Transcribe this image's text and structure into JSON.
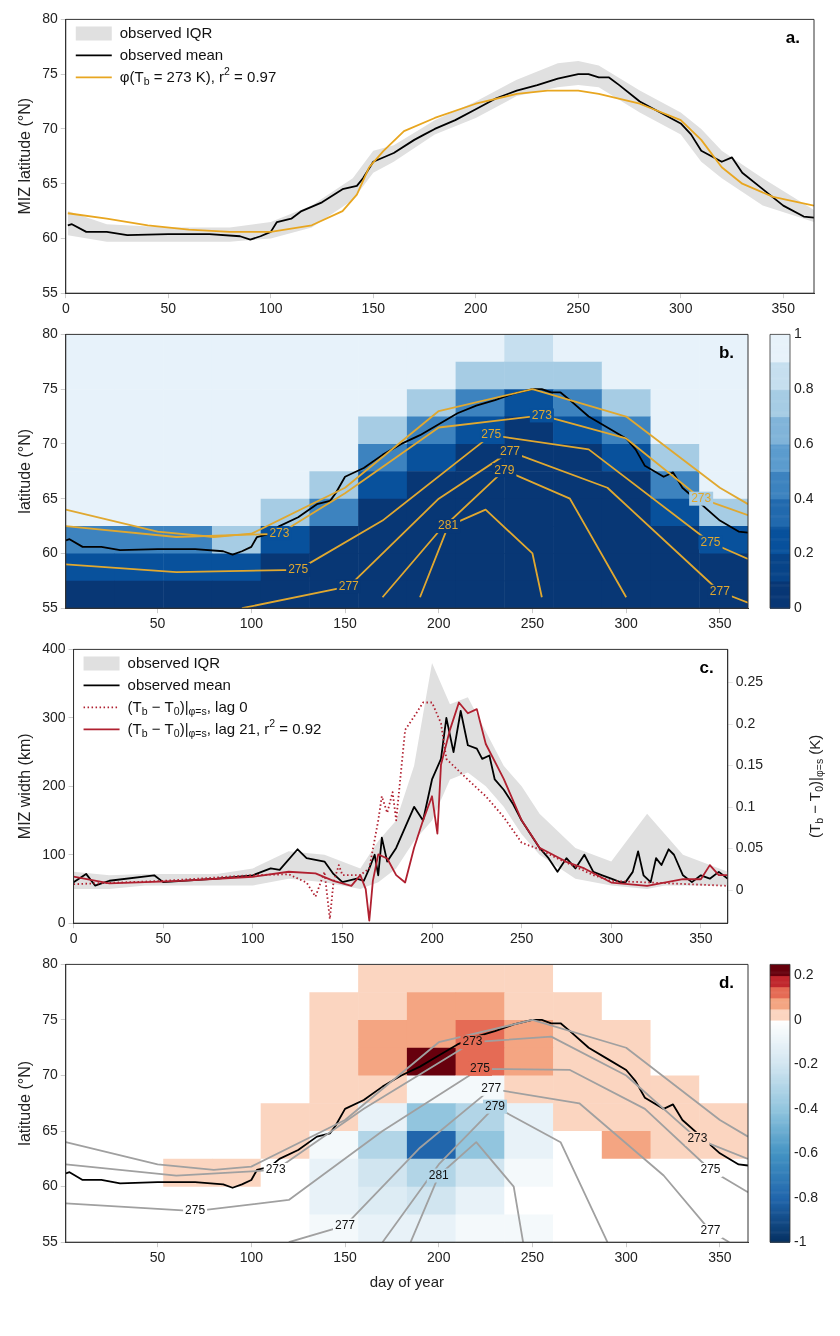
{
  "chart_data": [
    {
      "type": "line",
      "ylabel": "MIZ latitude (°N)",
      "xlim": [
        0,
        365
      ],
      "xticks": [
        0,
        50,
        100,
        150,
        200,
        250,
        300,
        350
      ],
      "ylim": [
        55,
        80
      ],
      "yticks": [
        55,
        60,
        65,
        70,
        75,
        80
      ],
      "legend": "top left",
      "annotations": [
        "a."
      ],
      "series": [
        {
          "name": "observed IQR",
          "type": "line",
          "color": "#e0e0e0",
          "x": [
            1,
            20,
            50,
            80,
            100,
            120,
            140,
            150,
            160,
            180,
            200,
            220,
            240,
            250,
            260,
            280,
            300,
            310,
            320,
            340,
            365
          ],
          "values": [
            null,
            null,
            null,
            null,
            null,
            null,
            null,
            null,
            null,
            null,
            null,
            null,
            null,
            null,
            null,
            null,
            null,
            null,
            null,
            null,
            null
          ],
          "lower": [
            60.3,
            59.7,
            59.7,
            59.7,
            60,
            61,
            63.5,
            66,
            67,
            69.5,
            71,
            73,
            73.8,
            74,
            73.8,
            71.5,
            69.5,
            67,
            65.5,
            63,
            61.5
          ],
          "upper": [
            62.5,
            61.3,
            61,
            61,
            61.5,
            63,
            65.5,
            68,
            68.5,
            70.8,
            72.5,
            74.5,
            76,
            76.2,
            75.8,
            73.5,
            71.5,
            70,
            68,
            65.5,
            62.6
          ]
        },
        {
          "name": "observed mean",
          "type": "line",
          "color": "#000000",
          "x": [
            1,
            3,
            10,
            20,
            30,
            50,
            70,
            85,
            90,
            95,
            100,
            103,
            110,
            115,
            125,
            135,
            142,
            145,
            150,
            160,
            170,
            175,
            180,
            190,
            200,
            210,
            220,
            230,
            240,
            250,
            255,
            260,
            265,
            270,
            280,
            290,
            300,
            305,
            310,
            320,
            325,
            330,
            340,
            350,
            360,
            365
          ],
          "values": [
            61.2,
            61.3,
            60.6,
            60.6,
            60.3,
            60.4,
            60.4,
            60.2,
            59.9,
            60.2,
            60.6,
            61.5,
            61.8,
            62.5,
            63.3,
            64.5,
            64.8,
            65.5,
            67,
            67.8,
            69,
            69.5,
            70,
            70.8,
            71.8,
            72.8,
            73.5,
            74,
            74.6,
            75,
            75,
            74.7,
            74.7,
            74,
            72.5,
            71.5,
            70.5,
            69.5,
            68,
            67,
            67.4,
            66,
            64.5,
            63,
            62,
            61.9
          ]
        },
        {
          "name": "φ(T$_{b}$ = 273 K), r$^{2}$ = 0.97",
          "type": "line",
          "color": "#e8a620",
          "x": [
            1,
            20,
            40,
            60,
            80,
            100,
            120,
            135,
            142,
            148,
            155,
            165,
            180,
            200,
            220,
            235,
            250,
            260,
            280,
            300,
            310,
            320,
            330,
            345,
            365
          ],
          "values": [
            62.3,
            61.8,
            61.2,
            60.8,
            60.6,
            60.6,
            61.2,
            62.5,
            64,
            66.5,
            68,
            69.8,
            71,
            72.3,
            73.2,
            73.5,
            73.5,
            73.2,
            72.3,
            70.8,
            69,
            66.5,
            65,
            63.8,
            63
          ]
        }
      ]
    },
    {
      "type": "heatmap",
      "ylabel": "latitude (°N)",
      "xlim": [
        1,
        365
      ],
      "xticks": [
        50,
        100,
        150,
        200,
        250,
        300,
        350
      ],
      "ylim": [
        55,
        80
      ],
      "yticks": [
        55,
        60,
        65,
        70,
        75,
        80
      ],
      "clim": [
        0,
        1
      ],
      "cticks": [
        0,
        0.2,
        0.4,
        0.6,
        0.8,
        1
      ],
      "annotations": [
        "b.",
        {
          "text": "273",
          "x": 115,
          "y": 61.8
        },
        {
          "text": "275",
          "x": 125,
          "y": 58.5
        },
        {
          "text": "277",
          "x": 152,
          "y": 57
        },
        {
          "text": "273",
          "x": 255,
          "y": 72.6
        },
        {
          "text": "275",
          "x": 228,
          "y": 70.8
        },
        {
          "text": "277",
          "x": 238,
          "y": 69.3
        },
        {
          "text": "279",
          "x": 235,
          "y": 67.6
        },
        {
          "text": "281",
          "x": 205,
          "y": 62.5
        },
        {
          "text": "273",
          "x": 340,
          "y": 65
        },
        {
          "text": "275",
          "x": 345,
          "y": 61
        },
        {
          "text": "277",
          "x": 350,
          "y": 56.5
        }
      ],
      "x": [
        14,
        40,
        66,
        92,
        118,
        144,
        170,
        196,
        222,
        248,
        274,
        300,
        326,
        352
      ],
      "cells": [
        [
          1,
          1,
          1,
          1,
          1,
          1,
          1,
          0.95,
          0.9,
          0.8,
          0.9,
          1,
          1,
          1
        ],
        [
          1,
          1,
          1,
          1,
          1,
          1,
          0.95,
          0.9,
          0.7,
          0.7,
          0.7,
          0.95,
          1,
          1
        ],
        [
          1,
          1,
          1,
          1,
          1,
          1,
          0.9,
          0.7,
          0.45,
          0.2,
          0.45,
          0.7,
          1,
          1
        ],
        [
          1,
          1,
          1,
          1,
          1,
          1,
          0.7,
          0.45,
          0.2,
          0.05,
          0.2,
          0.45,
          0.95,
          1
        ],
        [
          1,
          1,
          1,
          1,
          1,
          0.9,
          0.45,
          0.2,
          0.05,
          0.05,
          0.05,
          0.2,
          0.7,
          1
        ],
        [
          1,
          1,
          1,
          1,
          0.9,
          0.7,
          0.2,
          0.05,
          0.05,
          0.05,
          0.05,
          0.05,
          0.45,
          0.9
        ],
        [
          0.9,
          0.9,
          0.9,
          0.9,
          0.7,
          0.45,
          0.05,
          0.05,
          0.05,
          0.05,
          0.05,
          0.05,
          0.2,
          0.7
        ],
        [
          0.45,
          0.45,
          0.45,
          0.7,
          0.2,
          0.05,
          0.05,
          0.05,
          0.05,
          0.05,
          0.05,
          0.05,
          0.05,
          0.2
        ],
        [
          0.2,
          0.2,
          0.2,
          0.2,
          0.05,
          0.05,
          0.05,
          0.05,
          0.05,
          0.05,
          0.05,
          0.05,
          0.05,
          0.05
        ],
        [
          0.05,
          0.05,
          0.05,
          0.05,
          0.05,
          0.05,
          0.05,
          0.05,
          0.05,
          0.05,
          0.05,
          0.05,
          0.05,
          0.05
        ]
      ],
      "series": [
        {
          "type": "line",
          "color": "#000000",
          "x": [
            1,
            3,
            10,
            20,
            30,
            50,
            70,
            85,
            90,
            95,
            100,
            103,
            110,
            115,
            125,
            135,
            142,
            145,
            150,
            160,
            170,
            175,
            180,
            190,
            200,
            210,
            220,
            230,
            240,
            250,
            255,
            260,
            265,
            270,
            280,
            290,
            300,
            305,
            310,
            320,
            325,
            330,
            340,
            350,
            360,
            365
          ],
          "values": [
            61.2,
            61.3,
            60.6,
            60.6,
            60.3,
            60.4,
            60.4,
            60.2,
            59.9,
            60.2,
            60.6,
            61.5,
            61.8,
            62.5,
            63.3,
            64.5,
            64.8,
            65.5,
            67,
            67.8,
            69,
            69.5,
            70,
            70.8,
            71.8,
            72.8,
            73.5,
            74,
            74.6,
            75,
            75,
            74.7,
            74.7,
            74,
            72.5,
            71.5,
            70.5,
            69.5,
            68,
            67,
            67.4,
            66,
            64.5,
            63,
            62,
            61.9
          ]
        },
        {
          "type": "line",
          "color": "#e0a830",
          "x": [
            1,
            50,
            80,
            100,
            150,
            200,
            250,
            300,
            350,
            365
          ],
          "values": [
            64,
            62,
            61.5,
            61.8,
            66,
            73,
            75,
            72.5,
            66,
            64.5
          ]
        },
        {
          "type": "line",
          "color": "#e0a830",
          "x": [
            1,
            60,
            115,
            150,
            200,
            255,
            300,
            340,
            365
          ],
          "values": [
            62.5,
            61.5,
            61.8,
            65.5,
            71.5,
            72.6,
            70.5,
            65,
            63.5
          ]
        },
        {
          "type": "line",
          "color": "#e0a830",
          "x": [
            1,
            60,
            125,
            170,
            228,
            280,
            345,
            365
          ],
          "values": [
            59,
            58.3,
            58.5,
            63,
            70.8,
            69.5,
            61,
            59.5
          ]
        },
        {
          "type": "line",
          "color": "#e0a830",
          "x": [
            95,
            152,
            200,
            238,
            290,
            350,
            365
          ],
          "values": [
            55,
            57,
            65,
            69.3,
            66,
            56.5,
            55.5
          ]
        },
        {
          "type": "line",
          "color": "#e0a830",
          "x": [
            170,
            200,
            235,
            270,
            300
          ],
          "values": [
            56,
            62,
            67.6,
            65,
            56
          ]
        },
        {
          "type": "line",
          "color": "#e0a830",
          "x": [
            190,
            205,
            225,
            250,
            255
          ],
          "values": [
            56,
            62.5,
            64,
            60,
            56
          ]
        }
      ]
    },
    {
      "type": "line",
      "ylabel": "MIZ width (km)",
      "y2label": "(T$_{b}$ − T$_{0}$)|$_{φ=s}$ (K)",
      "xlim": [
        0,
        365
      ],
      "xticks": [
        0,
        50,
        100,
        150,
        200,
        250,
        300,
        350
      ],
      "ylim": [
        0,
        400
      ],
      "yticks": [
        0,
        100,
        200,
        300,
        400
      ],
      "y2lim": [
        -0.04,
        0.29
      ],
      "y2ticks": [
        0,
        0.05,
        0.1,
        0.15,
        0.2,
        0.25
      ],
      "legend": "top left",
      "annotations": [
        "c."
      ],
      "series": [
        {
          "name": "observed IQR",
          "type": "line",
          "color": "#e0e0e0",
          "x": [
            0,
            20,
            40,
            60,
            80,
            100,
            120,
            140,
            160,
            170,
            180,
            190,
            200,
            210,
            220,
            230,
            240,
            250,
            260,
            280,
            300,
            320,
            330,
            340,
            365
          ],
          "values": [
            null,
            null,
            null,
            null,
            null,
            null,
            null,
            null,
            null,
            null,
            null,
            null,
            null,
            null,
            null,
            null,
            null,
            null,
            null,
            null,
            null,
            null,
            null,
            null,
            null
          ],
          "lower": [
            50,
            50,
            55,
            55,
            55,
            55,
            65,
            60,
            50,
            60,
            80,
            120,
            150,
            210,
            220,
            200,
            170,
            130,
            100,
            65,
            55,
            50,
            55,
            55,
            55
          ],
          "upper": [
            75,
            70,
            72,
            72,
            72,
            80,
            105,
            100,
            80,
            120,
            150,
            230,
            380,
            320,
            330,
            280,
            230,
            200,
            160,
            110,
            90,
            160,
            130,
            100,
            75
          ]
        },
        {
          "name": "observed mean",
          "type": "line",
          "color": "#000000",
          "x": [
            0,
            7,
            12,
            20,
            45,
            50,
            80,
            100,
            110,
            115,
            125,
            130,
            140,
            145,
            150,
            158,
            162,
            165,
            168,
            170,
            172,
            175,
            180,
            185,
            190,
            195,
            200,
            205,
            208,
            212,
            216,
            220,
            225,
            228,
            232,
            235,
            240,
            245,
            250,
            255,
            260,
            265,
            270,
            275,
            280,
            285,
            290,
            295,
            300,
            305,
            308,
            312,
            315,
            318,
            322,
            325,
            328,
            332,
            335,
            340,
            345,
            350,
            355,
            360,
            365
          ],
          "values": [
            60,
            72,
            55,
            62,
            70,
            60,
            65,
            70,
            80,
            78,
            108,
            95,
            90,
            72,
            60,
            65,
            62,
            80,
            100,
            70,
            125,
            90,
            110,
            140,
            170,
            150,
            210,
            240,
            300,
            250,
            310,
            260,
            255,
            240,
            245,
            210,
            195,
            175,
            150,
            130,
            110,
            95,
            75,
            95,
            80,
            100,
            75,
            70,
            65,
            60,
            60,
            75,
            105,
            70,
            60,
            95,
            85,
            108,
            100,
            70,
            60,
            70,
            65,
            75,
            65
          ]
        },
        {
          "name": "(T$_{b}$ − T$_{0}$)|$_{φ=s}$, lag 0",
          "type": "line",
          "axis": "y2",
          "line_style": "dotted",
          "color": "#b02030",
          "x": [
            0,
            50,
            100,
            120,
            130,
            135,
            140,
            143,
            145,
            148,
            150,
            160,
            165,
            170,
            172,
            175,
            178,
            180,
            185,
            190,
            195,
            200,
            205,
            208,
            220,
            230,
            240,
            250,
            260,
            270,
            290,
            300,
            365
          ],
          "values": [
            0.007,
            0.011,
            0.018,
            0.019,
            0.009,
            -0.008,
            0.022,
            -0.035,
            0.009,
            0.03,
            0.018,
            0.018,
            0.026,
            0.084,
            0.113,
            0.093,
            0.118,
            0.084,
            0.193,
            0.209,
            0.226,
            0.226,
            0.201,
            0.158,
            0.133,
            0.113,
            0.088,
            0.057,
            0.049,
            0.038,
            0.018,
            0.011,
            0.005
          ]
        },
        {
          "name": "(T$_{b}$ − T$_{0}$)|$_{φ=s}$, lag 21, r$^{2}$ = 0.92",
          "type": "line",
          "axis": "y2",
          "color": "#b02030",
          "x": [
            0,
            20,
            60,
            100,
            120,
            135,
            145,
            155,
            160,
            163,
            165,
            167,
            170,
            175,
            180,
            185,
            190,
            195,
            200,
            203,
            205,
            210,
            215,
            220,
            225,
            230,
            240,
            250,
            260,
            275,
            285,
            300,
            320,
            340,
            350,
            355,
            360,
            365
          ],
          "values": [
            0.016,
            0.008,
            0.011,
            0.016,
            0.022,
            0.02,
            0.011,
            0.005,
            0.018,
            0.001,
            -0.037,
            0.011,
            0.043,
            0.038,
            0.018,
            0.009,
            0.051,
            0.084,
            0.113,
            0.068,
            0.151,
            0.193,
            0.226,
            0.213,
            0.218,
            0.176,
            0.134,
            0.084,
            0.051,
            0.034,
            0.026,
            0.009,
            0.005,
            0.013,
            0.013,
            0.03,
            0.018,
            0.018
          ]
        }
      ]
    },
    {
      "type": "heatmap",
      "xlabel": "day of year",
      "ylabel": "latitude (°N)",
      "xlim": [
        1,
        365
      ],
      "xticks": [
        50,
        100,
        150,
        200,
        250,
        300,
        350
      ],
      "ylim": [
        55,
        80
      ],
      "yticks": [
        55,
        60,
        65,
        70,
        75,
        80
      ],
      "clim": [
        -1,
        0.25
      ],
      "cticks": [
        -1,
        -0.8,
        -0.6,
        -0.4,
        -0.2,
        0,
        0.2
      ],
      "annotations": [
        "d.",
        {
          "text": "273",
          "x": 113,
          "y": 61.5
        },
        {
          "text": "275",
          "x": 70,
          "y": 57.8
        },
        {
          "text": "277",
          "x": 150,
          "y": 56.5
        },
        {
          "text": "273",
          "x": 218,
          "y": 73
        },
        {
          "text": "275",
          "x": 222,
          "y": 70.6
        },
        {
          "text": "277",
          "x": 228,
          "y": 68.8
        },
        {
          "text": "279",
          "x": 230,
          "y": 67.2
        },
        {
          "text": "281",
          "x": 200,
          "y": 61
        },
        {
          "text": "273",
          "x": 338,
          "y": 64.3
        },
        {
          "text": "275",
          "x": 345,
          "y": 61.5
        },
        {
          "text": "277",
          "x": 345,
          "y": 56
        }
      ],
      "x": [
        14,
        40,
        66,
        92,
        118,
        144,
        170,
        196,
        222,
        248,
        274,
        300,
        326,
        352
      ],
      "cells": [
        [
          0,
          0,
          0,
          0,
          0,
          0,
          0.03,
          0.03,
          0.03,
          0.03,
          0,
          0,
          0,
          0
        ],
        [
          0,
          0,
          0,
          0,
          0,
          0.03,
          0.03,
          0.05,
          0.05,
          0.03,
          0.03,
          0,
          0,
          0
        ],
        [
          0,
          0,
          0,
          0,
          0,
          0.03,
          0.05,
          0.08,
          0.15,
          0.08,
          0.03,
          0.03,
          0,
          0
        ],
        [
          0,
          0,
          0,
          0,
          0,
          0.03,
          0.08,
          0.2,
          0.1,
          0.05,
          0.03,
          0.03,
          0,
          0
        ],
        [
          0,
          0,
          0,
          0,
          0,
          0.03,
          0.03,
          -0.05,
          -0.05,
          0.03,
          0.03,
          0.03,
          0.03,
          0
        ],
        [
          0,
          0,
          0,
          0,
          0.03,
          0.03,
          -0.1,
          -0.4,
          -0.3,
          -0.1,
          0.03,
          0.03,
          0.03,
          0.03
        ],
        [
          0,
          0,
          0,
          0,
          0.03,
          -0.05,
          -0.3,
          -0.8,
          -0.4,
          -0.1,
          0,
          0.05,
          0.03,
          0.03
        ],
        [
          0,
          0,
          0.03,
          0.03,
          0,
          -0.1,
          -0.2,
          -0.3,
          -0.2,
          -0.05,
          0,
          0,
          0,
          0
        ],
        [
          0,
          0,
          0,
          0,
          0,
          -0.1,
          -0.15,
          -0.2,
          -0.1,
          0,
          0,
          0,
          0,
          0
        ],
        [
          0,
          0,
          0,
          0,
          0,
          -0.05,
          -0.1,
          -0.1,
          -0.05,
          -0.05,
          0,
          0,
          0,
          0
        ]
      ],
      "series": [
        {
          "type": "line",
          "color": "#000000",
          "x": [
            1,
            3,
            10,
            20,
            30,
            50,
            70,
            85,
            90,
            95,
            100,
            103,
            110,
            115,
            125,
            135,
            142,
            145,
            150,
            160,
            170,
            175,
            180,
            190,
            200,
            210,
            220,
            230,
            240,
            250,
            255,
            260,
            265,
            270,
            280,
            290,
            300,
            305,
            310,
            320,
            325,
            330,
            340,
            350,
            360,
            365
          ],
          "values": [
            61.2,
            61.3,
            60.6,
            60.6,
            60.3,
            60.4,
            60.4,
            60.2,
            59.9,
            60.2,
            60.6,
            61.5,
            61.8,
            62.5,
            63.3,
            64.5,
            64.8,
            65.5,
            67,
            67.8,
            69,
            69.5,
            70,
            70.8,
            71.8,
            72.8,
            73.5,
            74,
            74.6,
            75,
            75,
            74.7,
            74.7,
            74,
            72.5,
            71.5,
            70.5,
            69.5,
            68,
            67,
            67.4,
            66,
            64.5,
            63,
            62,
            61.9
          ]
        },
        {
          "type": "line",
          "color": "#a0a0a0",
          "x": [
            1,
            50,
            80,
            100,
            150,
            200,
            250,
            300,
            350,
            365
          ],
          "values": [
            64,
            62,
            61.5,
            61.8,
            66,
            73,
            75,
            72.5,
            66,
            64.5
          ]
        },
        {
          "type": "line",
          "color": "#a0a0a0",
          "x": [
            1,
            60,
            113,
            160,
            218,
            260,
            300,
            338,
            365
          ],
          "values": [
            62,
            61,
            61.5,
            67,
            73,
            73.5,
            70,
            64.3,
            62.5
          ]
        },
        {
          "type": "line",
          "color": "#a0a0a0",
          "x": [
            1,
            70,
            120,
            170,
            222,
            270,
            310,
            345,
            365
          ],
          "values": [
            58.5,
            57.8,
            58.8,
            65,
            70.6,
            70.5,
            67,
            61.5,
            59.5
          ]
        },
        {
          "type": "line",
          "color": "#a0a0a0",
          "x": [
            120,
            150,
            190,
            228,
            275,
            320,
            345,
            355
          ],
          "values": [
            55,
            56.5,
            63.5,
            68.8,
            67.5,
            61,
            56,
            55
          ]
        },
        {
          "type": "line",
          "color": "#a0a0a0",
          "x": [
            170,
            200,
            230,
            265,
            290
          ],
          "values": [
            55,
            62,
            67.2,
            64,
            55
          ]
        },
        {
          "type": "line",
          "color": "#a0a0a0",
          "x": [
            185,
            200,
            220,
            240,
            245
          ],
          "values": [
            55,
            61,
            64,
            60,
            55
          ]
        }
      ]
    }
  ]
}
